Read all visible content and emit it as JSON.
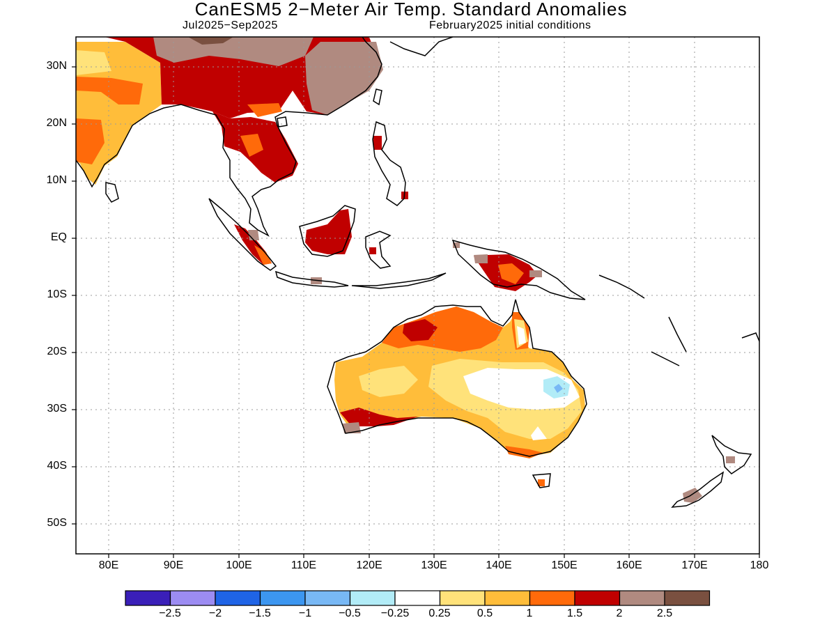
{
  "title": "CanESM5 2−Meter Air Temp. Standard Anomalies",
  "subtitle_left": "Jul2025−Sep2025",
  "subtitle_right": "February2025 initial conditions",
  "lat_labels": [
    "30N",
    "20N",
    "10N",
    "EQ",
    "10S",
    "20S",
    "30S",
    "40S",
    "50S"
  ],
  "lon_labels": [
    "80E",
    "90E",
    "100E",
    "110E",
    "120E",
    "130E",
    "140E",
    "150E",
    "160E",
    "170E",
    "180"
  ],
  "colorbar": {
    "colors": [
      "#3a1fb8",
      "#9c8cf2",
      "#1f64e6",
      "#3c96f0",
      "#78b8f5",
      "#b2ecf7",
      "#ffffff",
      "#ffe27a",
      "#ffbd3a",
      "#ff6a0a",
      "#c00000",
      "#b08a80",
      "#7a5040"
    ],
    "labels": [
      "−2.5",
      "−2",
      "−1.5",
      "−1",
      "−0.5",
      "−0.25",
      "0.25",
      "0.5",
      "1",
      "1.5",
      "2",
      "2.5"
    ]
  },
  "chart_data": {
    "type": "heatmap",
    "title": "CanESM5 2−Meter Air Temp. Standard Anomalies",
    "period": "Jul2025−Sep2025",
    "initial_conditions": "February2025 initial conditions",
    "lon_range": [
      75,
      180
    ],
    "lat_range": [
      -55,
      35
    ],
    "grid": true,
    "regions": [
      {
        "region": "Tibetan Plateau / southern China",
        "anomaly_range": "1.5 to 2.5+"
      },
      {
        "region": "Indian subcontinent",
        "anomaly_range": "0.25 to 1.5"
      },
      {
        "region": "Mainland Southeast Asia",
        "anomaly_range": "1.5 to 2"
      },
      {
        "region": "Borneo",
        "anomaly_range": "1.5 to 2"
      },
      {
        "region": "Sumatra",
        "anomaly_range": "1 to 2.5"
      },
      {
        "region": "New Guinea",
        "anomaly_range": "1 to 2.5"
      },
      {
        "region": "Northern Australia",
        "anomaly_range": "1 to 2"
      },
      {
        "region": "Central Australia",
        "anomaly_range": "0.5 to 1"
      },
      {
        "region": "Eastern Australia",
        "anomaly_range": "-0.5 to 0.5"
      },
      {
        "region": "Southwest Australia",
        "anomaly_range": "1.5 to 2.5"
      },
      {
        "region": "New Zealand",
        "anomaly_range": "2 to 2.5"
      }
    ]
  }
}
